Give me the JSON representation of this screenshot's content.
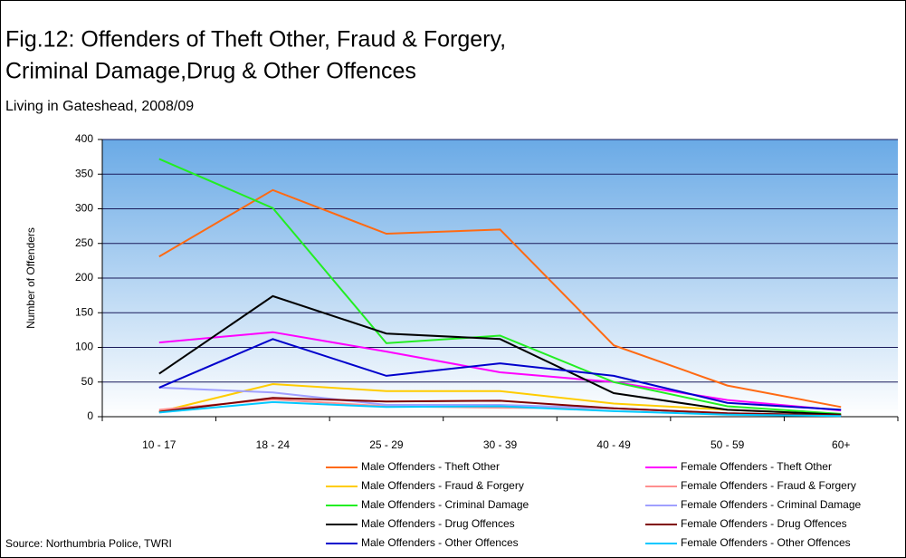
{
  "chart_data": {
    "type": "line",
    "title": [
      "Fig.12: Offenders of Theft Other, Fraud & Forgery,",
      "Criminal Damage,Drug & Other Offences"
    ],
    "subtitle": "Living in Gateshead, 2008/09",
    "y_label": "Number of Offenders",
    "source": "Source: Northumbria Police, TWRI",
    "categories": [
      "10 - 17",
      "18 - 24",
      "25 - 29",
      "30 - 39",
      "40 - 49",
      "50 - 59",
      "60+"
    ],
    "ylim": [
      0,
      400
    ],
    "yticks": [
      0,
      50,
      100,
      150,
      200,
      250,
      300,
      350,
      400
    ],
    "grid": true,
    "series": [
      {
        "name": "Male Offenders - Theft Other",
        "color": "#ff6a13",
        "values": [
          231,
          327,
          264,
          270,
          103,
          45,
          14
        ]
      },
      {
        "name": "Female Offenders - Theft Other",
        "color": "#ff00ff",
        "values": [
          107,
          122,
          94,
          64,
          50,
          24,
          9
        ]
      },
      {
        "name": "Male Offenders - Fraud & Forgery",
        "color": "#ffcc00",
        "values": [
          7,
          47,
          37,
          37,
          19,
          10,
          3
        ]
      },
      {
        "name": "Female Offenders - Fraud & Forgery",
        "color": "#ff8f8f",
        "values": [
          10,
          25,
          15,
          13,
          12,
          5,
          2
        ]
      },
      {
        "name": "Male Offenders - Criminal Damage",
        "color": "#22ee22",
        "values": [
          372,
          301,
          106,
          117,
          50,
          15,
          4
        ]
      },
      {
        "name": "Female Offenders - Criminal Damage",
        "color": "#a0a0ff",
        "values": [
          42,
          35,
          17,
          17,
          12,
          5,
          2
        ]
      },
      {
        "name": "Male Offenders - Drug Offences",
        "color": "#000000",
        "values": [
          62,
          174,
          120,
          112,
          34,
          10,
          3
        ]
      },
      {
        "name": "Female Offenders - Drug Offences",
        "color": "#800000",
        "values": [
          7,
          27,
          22,
          23,
          12,
          5,
          2
        ]
      },
      {
        "name": "Male Offenders - Other Offences",
        "color": "#0000cc",
        "values": [
          42,
          112,
          59,
          77,
          59,
          20,
          10
        ]
      },
      {
        "name": "Female Offenders - Other Offences",
        "color": "#00c8ff",
        "values": [
          6,
          21,
          14,
          15,
          8,
          3,
          1
        ]
      }
    ]
  }
}
